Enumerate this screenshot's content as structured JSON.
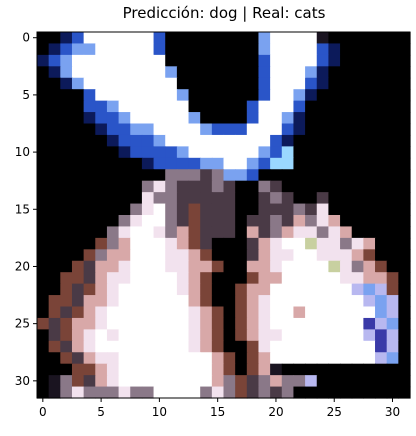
{
  "title": "Predicción: dog | Real: cats",
  "chart_data": {
    "type": "heatmap",
    "title": "Predicción: dog | Real: cats",
    "grid_size": [
      32,
      32
    ],
    "grid": false,
    "xlim": [
      -0.5,
      31.5
    ],
    "ylim": [
      31.5,
      -0.5
    ],
    "xticks": [
      0,
      5,
      10,
      15,
      20,
      25,
      30
    ],
    "yticks": [
      0,
      5,
      10,
      15,
      20,
      25,
      30
    ],
    "palette": {
      "k": "#000000",
      "d": "#1a1420",
      "n": "#0c1a5a",
      "b": "#2a55c8",
      "l": "#7aa2f0",
      "w": "#ffffff",
      "p": "#f2e2ee",
      "g": "#8a7888",
      "m": "#4a3a46",
      "r": "#7a4438",
      "s": "#d8a8a8",
      "c": "#9ad8ff",
      "o": "#c8d0a0",
      "u": "#3a3aa8",
      "v": "#b8b8f0"
    },
    "rows": [
      "kknbwwwwwwbkkkkkkkklwwwwdkkkkkkk",
      "knbllwwwwwbkkkkkkkklwwwwbnkkkkkk",
      "nblwwwwwwwwkkkkkkkkbwwwwbnkkkkkk",
      "knlwwwwwwwwlkkkkkkkbwwwlnkkkkkkk",
      "kknlwwwwwwwwkkkkkkkbwwwbnkkkkkkk",
      "kkkkbwwwwwwwlkkkkkkbwwlnkkkkkkkk",
      "kkkkbblwwwwwwkkkkkbwwwbkkkkkkkkk",
      "kkkknbblwwwwwlkkkkbwwlnkkkkkkkkk",
      "kkkkknbbllwwwwlbbbwwwbnkkkkkkkkk",
      "kkkkkknbbblwwwwwwwwwbnkkkkkkkkkk",
      "kkkkkkknbbbblwwwwwwlbckkkkkkkkkk",
      "kkkkkkkkknbbbbllwwlbcckkkkkkkkkk",
      "kkkkkkkkkkkgggmgllbkkkkkkkkkkkkk",
      "kkkkkkkkkgpgmmmgmkkgmkkkkkkkkkkk",
      "kkkkkkkkkpggmmmmmkkmgmkkmkkkkkkk",
      "kkkkkkkkgpwgmrmmmkkmmmgmpkkkkkkk",
      "kkkkkkkgpwwgmrmmmkmmgmsgpskkkkkk",
      "kkkkkkgpwwpgsrmmmksmgsppgpskkkkk",
      "kkkkkrgswwwpsrmkkkmspwwoppgpskkk",
      "kkkkrgsswwwppsrkkkmsppwwpppsrkkk",
      "kkkrmsspwwwppssrkksspwwwwopgsrkk",
      "kkrrmsppwwwwpsrkkkrsswwwwwppssrk",
      "kkrmrspwwwwwpsrkkrsswwwwwwwvlvrk",
      "krrmsspwwwwwwsrkkrspwwwwwwwwvlvk",
      "krmrspwwwwwwwpsrkrspwwswwwwwwlvk",
      "rmrsspwwwwwwwpsrkrspwwwwwwwwuvlk",
      "kmrspwpwwwwwwpsrkrsppwwwwwwwvuvk",
      "krmspwwwwwwwwpsrkkrpwwwwwwwwwuvk",
      "kkrmsppwwwwwwwwsrkrswwwwwwwwwvlk",
      "kkkrrspwwwwwwwwsrkrsdkkkkkkkkkkk",
      "kdgrmspwwwwwwwwsgrmgsggvkkkkkkkk",
      "kdgpgggpggwwwwgpgrmgmgkkkkkkkkkk"
    ]
  }
}
